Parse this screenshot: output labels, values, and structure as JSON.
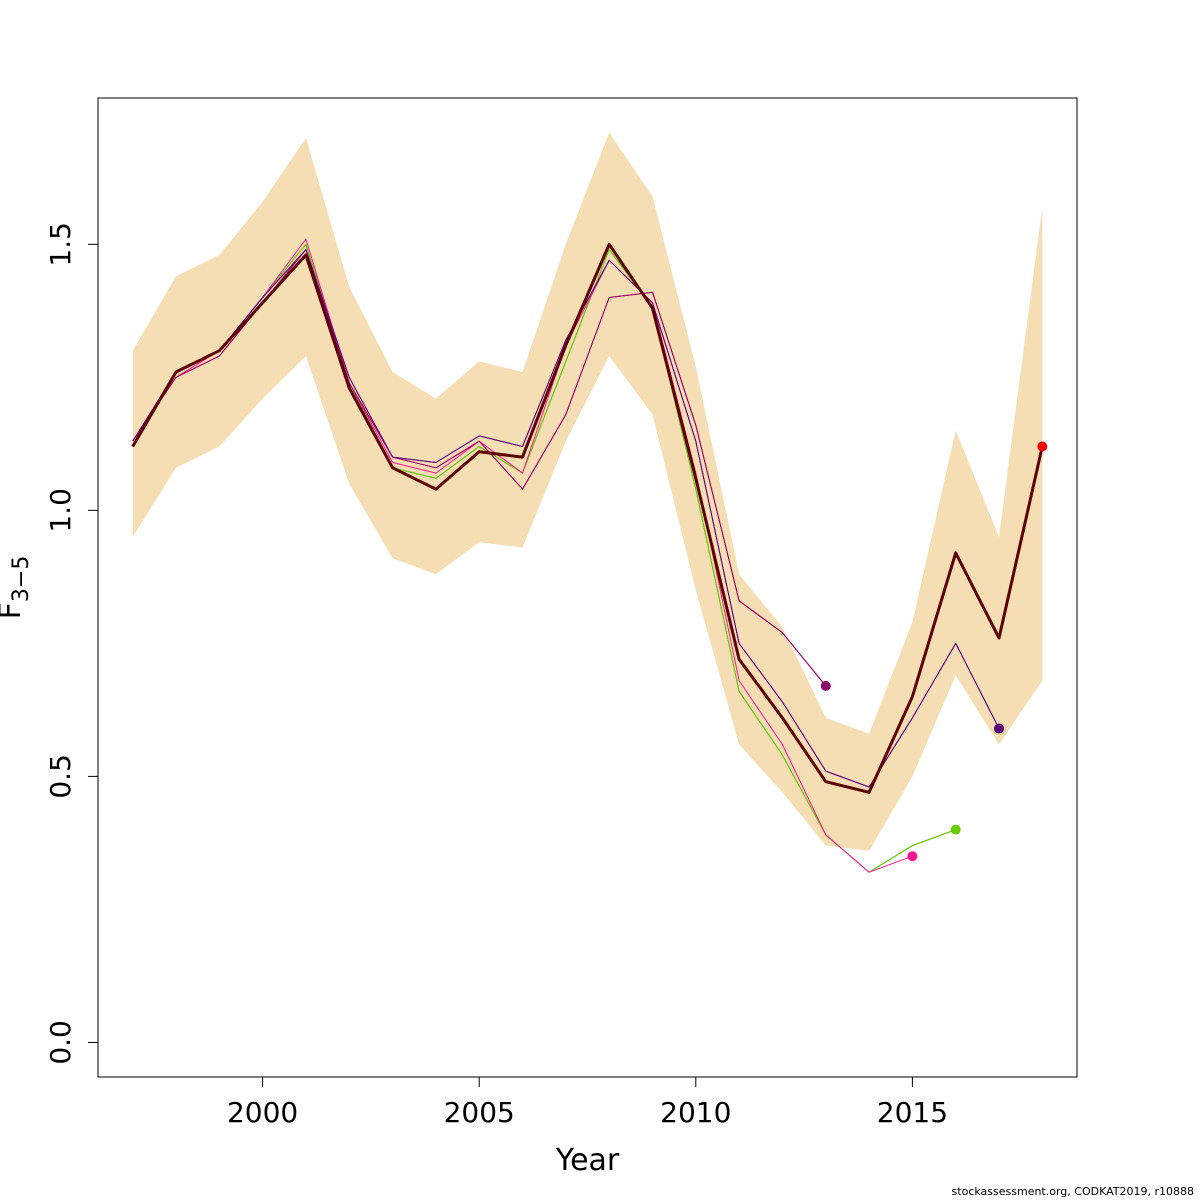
{
  "chart_data": {
    "type": "line",
    "xlabel": "Year",
    "ylabel": "F",
    "ylabel_subscript": "3−5",
    "xlim": [
      1996.2,
      2018.8
    ],
    "ylim": [
      -0.065,
      1.775
    ],
    "xticks": [
      2000,
      2005,
      2010,
      2015
    ],
    "xtick_labels": [
      "2000",
      "2005",
      "2010",
      "2015"
    ],
    "yticks": [
      0.0,
      0.5,
      1.0,
      1.5
    ],
    "ytick_labels": [
      "0.0",
      "0.5",
      "1.0",
      "1.5"
    ],
    "grid": false,
    "band": {
      "color": "#f5deb3",
      "x": [
        1997,
        1998,
        1999,
        2000,
        2001,
        2002,
        2003,
        2004,
        2005,
        2006,
        2007,
        2008,
        2009,
        2010,
        2011,
        2012,
        2013,
        2014,
        2015,
        2016,
        2017,
        2018
      ],
      "lower": [
        0.95,
        1.08,
        1.12,
        1.21,
        1.29,
        1.05,
        0.91,
        0.88,
        0.94,
        0.93,
        1.13,
        1.29,
        1.18,
        0.85,
        0.56,
        0.47,
        0.37,
        0.36,
        0.5,
        0.69,
        0.56,
        0.68
      ],
      "upper": [
        1.3,
        1.44,
        1.48,
        1.58,
        1.7,
        1.42,
        1.26,
        1.21,
        1.28,
        1.26,
        1.5,
        1.71,
        1.59,
        1.27,
        0.88,
        0.78,
        0.61,
        0.58,
        0.79,
        1.15,
        0.95,
        1.57
      ]
    },
    "series": [
      {
        "color": "#228b22",
        "width": 1,
        "x": [
          1997,
          1998,
          1999,
          2000,
          2001,
          2002,
          2003,
          2004,
          2005,
          2006,
          2007,
          2008,
          2009,
          2010,
          2011,
          2012,
          2013,
          2014,
          2015,
          2016
        ],
        "y": [
          1.12,
          1.26,
          1.3,
          1.4,
          1.5,
          1.24,
          1.08,
          1.06,
          1.12,
          1.07,
          1.28,
          1.49,
          1.38,
          1.04,
          0.66,
          0.54,
          0.39,
          0.32,
          0.37,
          0.4
        ],
        "end_point": true
      },
      {
        "color": "#66cc00",
        "width": 1,
        "x": [
          1997,
          1998,
          1999,
          2000,
          2001,
          2002,
          2003,
          2004,
          2005,
          2006,
          2007,
          2008,
          2009,
          2010,
          2011,
          2012,
          2013,
          2014,
          2015,
          2016
        ],
        "y": [
          1.12,
          1.26,
          1.3,
          1.4,
          1.5,
          1.24,
          1.08,
          1.06,
          1.12,
          1.07,
          1.28,
          1.49,
          1.38,
          1.04,
          0.66,
          0.54,
          0.39,
          0.32,
          0.37,
          0.4
        ],
        "end_point": true
      },
      {
        "color": "#ff1493",
        "width": 1,
        "x": [
          1997,
          1998,
          1999,
          2000,
          2001,
          2002,
          2003,
          2004,
          2005,
          2006,
          2007,
          2008,
          2009,
          2010,
          2011,
          2012,
          2013,
          2014,
          2015
        ],
        "y": [
          1.13,
          1.25,
          1.3,
          1.4,
          1.51,
          1.24,
          1.09,
          1.07,
          1.13,
          1.07,
          1.31,
          1.47,
          1.39,
          1.07,
          0.68,
          0.56,
          0.39,
          0.32,
          0.35
        ],
        "end_point": true
      },
      {
        "color": "#cc0077",
        "width": 1,
        "x": [
          1997,
          1998,
          1999,
          2000,
          2001,
          2002,
          2003,
          2004,
          2005,
          2006,
          2007,
          2008,
          2009,
          2010,
          2011,
          2012,
          2013
        ],
        "y": [
          1.13,
          1.25,
          1.29,
          1.39,
          1.49,
          1.24,
          1.1,
          1.08,
          1.13,
          1.04,
          1.18,
          1.4,
          1.41,
          1.16,
          0.83,
          0.77,
          0.67
        ],
        "end_point": true
      },
      {
        "color": "#990066",
        "width": 1,
        "x": [
          1997,
          1998,
          1999,
          2000,
          2001,
          2002,
          2003,
          2004,
          2005,
          2006,
          2007,
          2008,
          2009,
          2010,
          2011,
          2012,
          2013
        ],
        "y": [
          1.13,
          1.25,
          1.29,
          1.39,
          1.49,
          1.24,
          1.1,
          1.08,
          1.13,
          1.04,
          1.18,
          1.4,
          1.41,
          1.16,
          0.83,
          0.77,
          0.67
        ],
        "end_point": true
      },
      {
        "color": "#7a1ab0",
        "width": 1,
        "x": [
          1997,
          1998,
          1999,
          2000,
          2001,
          2002,
          2003,
          2004,
          2005,
          2006,
          2007,
          2008,
          2009,
          2010,
          2011,
          2012,
          2013,
          2014,
          2015,
          2016,
          2017
        ],
        "y": [
          1.13,
          1.26,
          1.3,
          1.4,
          1.49,
          1.25,
          1.1,
          1.09,
          1.14,
          1.12,
          1.32,
          1.47,
          1.39,
          1.13,
          0.75,
          0.64,
          0.51,
          0.48,
          0.61,
          0.75,
          0.59
        ],
        "end_point": true
      },
      {
        "color": "#5c007a",
        "width": 1,
        "x": [
          1997,
          1998,
          1999,
          2000,
          2001,
          2002,
          2003,
          2004,
          2005,
          2006,
          2007,
          2008,
          2009,
          2010,
          2011,
          2012,
          2013,
          2014,
          2015,
          2016,
          2017
        ],
        "y": [
          1.13,
          1.26,
          1.3,
          1.4,
          1.49,
          1.25,
          1.1,
          1.09,
          1.14,
          1.12,
          1.32,
          1.47,
          1.39,
          1.13,
          0.75,
          0.64,
          0.51,
          0.48,
          0.61,
          0.75,
          0.59
        ],
        "end_point": true
      },
      {
        "color": "#5c0000",
        "width": 3,
        "x": [
          1997,
          1998,
          1999,
          2000,
          2001,
          2002,
          2003,
          2004,
          2005,
          2006,
          2007,
          2008,
          2009,
          2010,
          2011,
          2012,
          2013,
          2014,
          2015,
          2016,
          2017,
          2018
        ],
        "y": [
          1.12,
          1.26,
          1.3,
          1.39,
          1.48,
          1.23,
          1.08,
          1.04,
          1.11,
          1.1,
          1.31,
          1.5,
          1.38,
          1.06,
          0.72,
          0.61,
          0.49,
          0.47,
          0.65,
          0.92,
          0.76,
          1.12
        ],
        "end_point": false
      }
    ],
    "end_points": [
      {
        "x": 2013,
        "y": 0.67,
        "color": "#8b0a6e"
      },
      {
        "x": 2015,
        "y": 0.35,
        "color": "#ff1493"
      },
      {
        "x": 2016,
        "y": 0.4,
        "color": "#66cc00"
      },
      {
        "x": 2017,
        "y": 0.59,
        "color": "#5c007a"
      },
      {
        "x": 2018,
        "y": 1.12,
        "color": "#ff0000"
      }
    ]
  },
  "footer": {
    "text": "stockassessment.org, CODKAT2019, r10888"
  }
}
